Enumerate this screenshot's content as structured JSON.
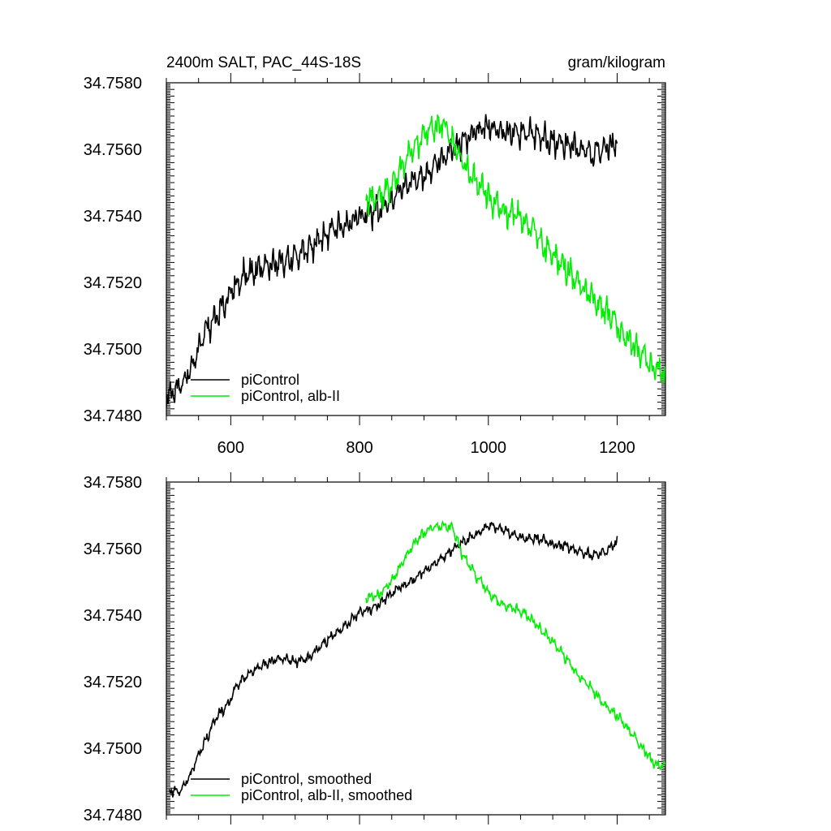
{
  "figure": {
    "title_left": "2400m SALT, PAC_44S-18S",
    "title_right": "gram/kilogram"
  },
  "chart_data": [
    {
      "type": "line",
      "title": "2400m SALT, PAC_44S-18S",
      "units": "gram/kilogram",
      "xlim": [
        500,
        1275
      ],
      "ylim": [
        34.748,
        34.758
      ],
      "x_ticks": [
        600,
        800,
        1000,
        1200
      ],
      "x_tick_labels": [
        "600",
        "800",
        "1000",
        "1200"
      ],
      "y_ticks": [
        34.748,
        34.75,
        34.752,
        34.754,
        34.756,
        34.758
      ],
      "y_tick_labels": [
        "34.7480",
        "34.7500",
        "34.7520",
        "34.7540",
        "34.7560",
        "34.7580"
      ],
      "legend_position": "bottom-left",
      "series": [
        {
          "name": "piControl",
          "color": "#000000",
          "x": [
            500,
            520,
            540,
            560,
            580,
            600,
            620,
            640,
            660,
            680,
            700,
            720,
            740,
            760,
            780,
            800,
            820,
            840,
            860,
            880,
            900,
            920,
            940,
            960,
            980,
            1000,
            1020,
            1040,
            1060,
            1080,
            1100,
            1120,
            1140,
            1160,
            1180,
            1200
          ],
          "y": [
            34.7485,
            34.7488,
            34.7495,
            34.7505,
            34.751,
            34.7517,
            34.7522,
            34.7524,
            34.7525,
            34.7526,
            34.7527,
            34.753,
            34.7533,
            34.7536,
            34.7538,
            34.754,
            34.7541,
            34.7543,
            34.7547,
            34.755,
            34.7552,
            34.7556,
            34.756,
            34.7562,
            34.7565,
            34.7567,
            34.7566,
            34.7565,
            34.7565,
            34.7564,
            34.7562,
            34.7562,
            34.756,
            34.7559,
            34.756,
            34.7562
          ]
        },
        {
          "name": "piControl, alb-II",
          "color": "#00ee00",
          "x": [
            810,
            830,
            850,
            870,
            890,
            910,
            930,
            950,
            970,
            990,
            1010,
            1030,
            1050,
            1070,
            1090,
            1110,
            1130,
            1150,
            1170,
            1190,
            1210,
            1230,
            1250,
            1275
          ],
          "y": [
            34.7545,
            34.7545,
            34.7549,
            34.7556,
            34.7562,
            34.7566,
            34.7568,
            34.756,
            34.7553,
            34.7549,
            34.7543,
            34.7541,
            34.754,
            34.7536,
            34.753,
            34.7526,
            34.7522,
            34.7518,
            34.7513,
            34.751,
            34.7504,
            34.75,
            34.7496,
            34.7492
          ]
        }
      ]
    },
    {
      "type": "line",
      "xlim": [
        500,
        1275
      ],
      "ylim": [
        34.748,
        34.758
      ],
      "x_ticks": [
        600,
        800,
        1000,
        1200
      ],
      "y_ticks": [
        34.748,
        34.75,
        34.752,
        34.754,
        34.756,
        34.758
      ],
      "y_tick_labels": [
        "34.7480",
        "34.7500",
        "34.7520",
        "34.7540",
        "34.7560",
        "34.7580"
      ],
      "legend_position": "bottom-left",
      "series": [
        {
          "name": "piControl, smoothed",
          "color": "#000000",
          "x": [
            505,
            520,
            535,
            550,
            565,
            580,
            595,
            610,
            625,
            640,
            660,
            680,
            700,
            720,
            740,
            760,
            780,
            800,
            820,
            840,
            860,
            880,
            900,
            920,
            940,
            960,
            980,
            1000,
            1020,
            1040,
            1060,
            1080,
            1100,
            1120,
            1140,
            1160,
            1180,
            1200
          ],
          "y": [
            34.7487,
            34.7487,
            34.7491,
            34.7498,
            34.7504,
            34.751,
            34.7513,
            34.7519,
            34.7522,
            34.7524,
            34.7526,
            34.7527,
            34.7526,
            34.7527,
            34.7531,
            34.7534,
            34.7537,
            34.7541,
            34.7542,
            34.7545,
            34.7548,
            34.755,
            34.7553,
            34.7556,
            34.7559,
            34.7562,
            34.7564,
            34.7567,
            34.7566,
            34.7564,
            34.7563,
            34.7563,
            34.7561,
            34.7561,
            34.7559,
            34.7558,
            34.7559,
            34.7562
          ]
        },
        {
          "name": "piControl, alb-II, smoothed",
          "color": "#00ee00",
          "x": [
            810,
            830,
            850,
            870,
            890,
            910,
            930,
            945,
            960,
            980,
            1000,
            1020,
            1040,
            1060,
            1080,
            1100,
            1120,
            1140,
            1160,
            1180,
            1200,
            1220,
            1240,
            1260,
            1275
          ],
          "y": [
            34.7545,
            34.7546,
            34.755,
            34.7557,
            34.7563,
            34.7566,
            34.7567,
            34.7566,
            34.7558,
            34.7552,
            34.7547,
            34.7543,
            34.7542,
            34.754,
            34.7536,
            34.7532,
            34.7527,
            34.7522,
            34.7518,
            34.7513,
            34.751,
            34.7505,
            34.75,
            34.7495,
            34.7495
          ]
        }
      ]
    }
  ]
}
